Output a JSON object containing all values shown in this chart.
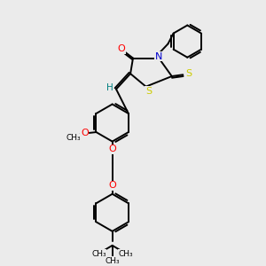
{
  "bg_color": "#ebebeb",
  "bond_color": "#000000",
  "bond_width": 1.4,
  "atom_colors": {
    "O": "#ff0000",
    "N": "#0000cc",
    "S": "#cccc00",
    "H": "#008080",
    "C": "#000000"
  },
  "figsize": [
    3.0,
    3.0
  ],
  "dpi": 100,
  "xlim": [
    0,
    10
  ],
  "ylim": [
    0,
    10
  ]
}
